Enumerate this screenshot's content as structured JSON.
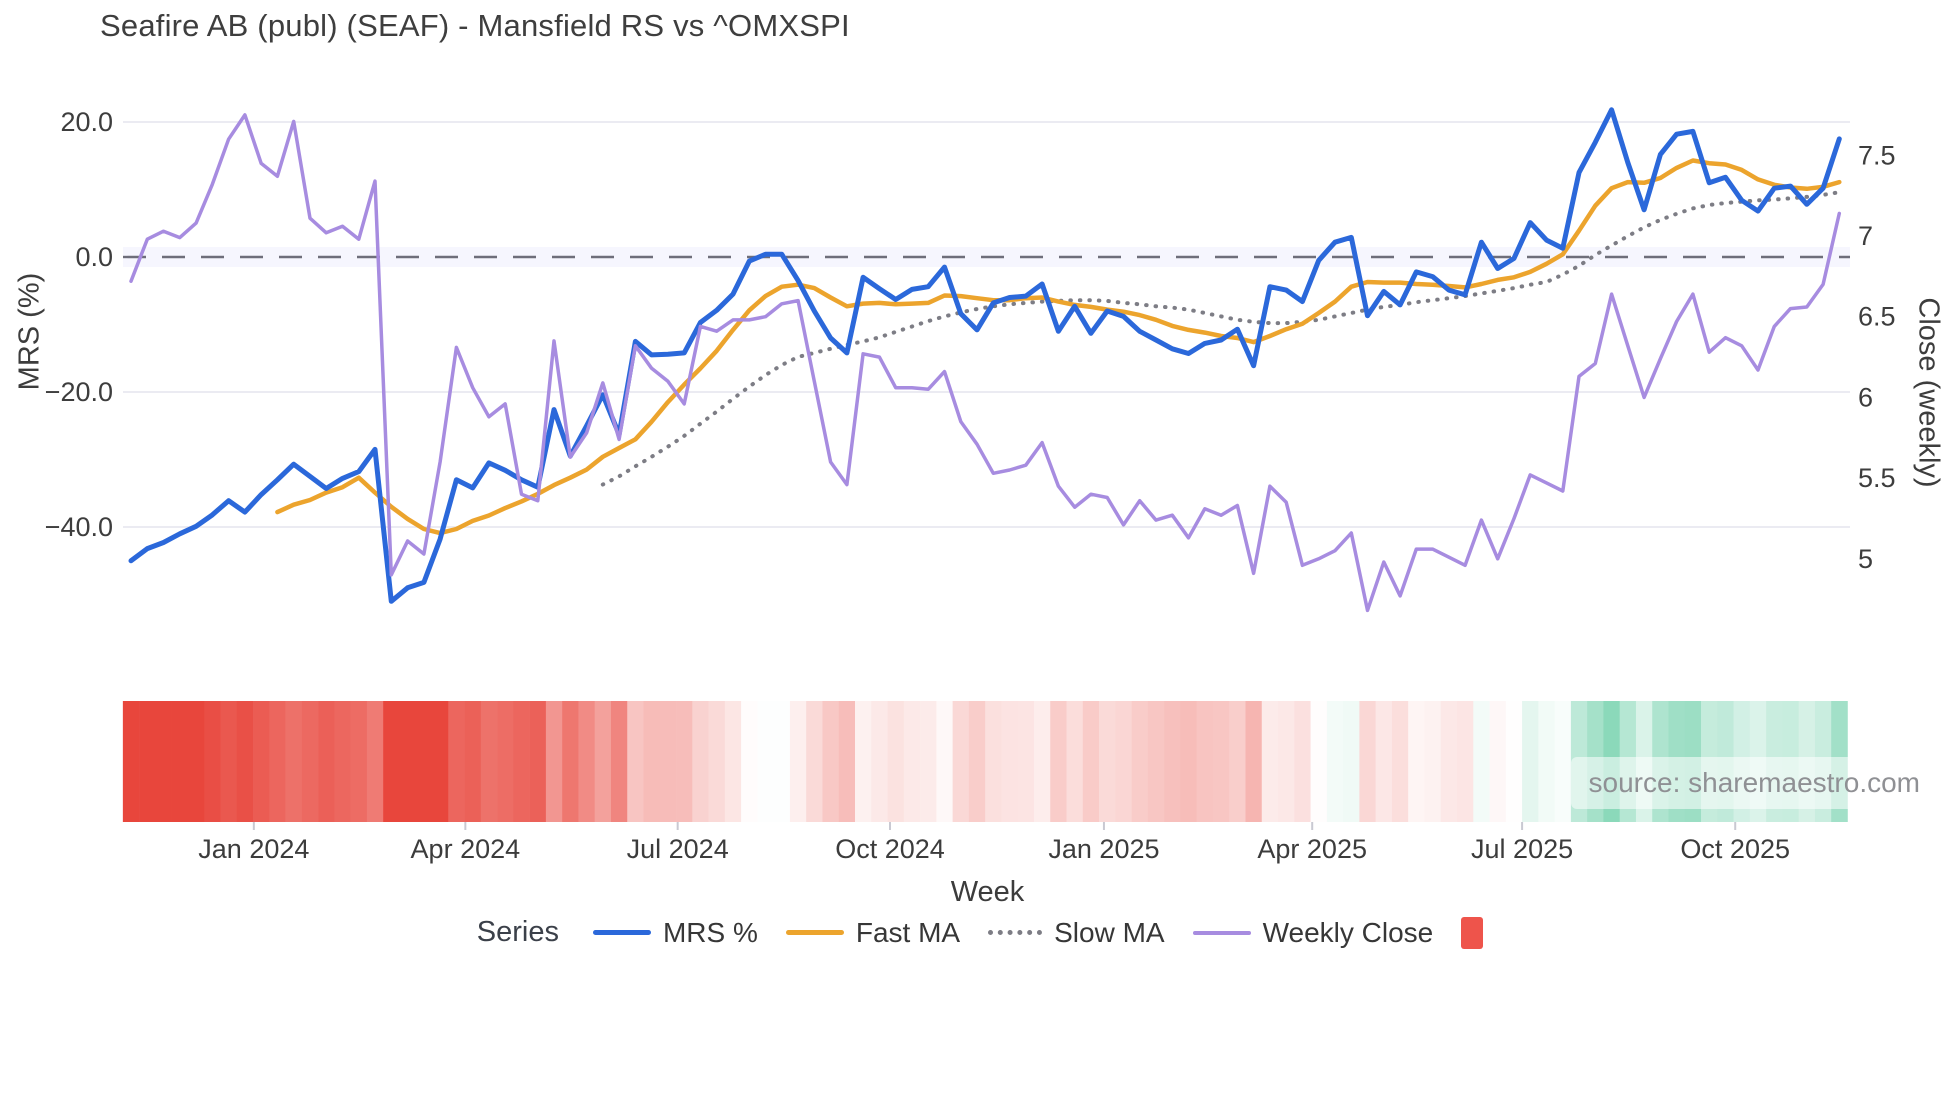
{
  "title": "Seafire AB (publ) (SEAF) - Mansfield RS vs ^OMXSPI",
  "source_text": "source: sharemaestro.com",
  "axes": {
    "left": {
      "title": "MRS (%)",
      "ticks": [
        20.0,
        0.0,
        -20.0,
        -40.0
      ],
      "tick_labels": [
        "20.0",
        "0.0",
        "−20.0",
        "−40.0"
      ]
    },
    "right": {
      "title": "Close (weekly)",
      "ticks": [
        7.5,
        7.0,
        6.5,
        6.0,
        5.5,
        5.0
      ],
      "tick_labels": [
        "7.5",
        "7",
        "6.5",
        "6",
        "5.5",
        "5"
      ]
    },
    "x": {
      "title": "Week",
      "tick_labels": [
        "Jan 2024",
        "Apr 2024",
        "Jul 2024",
        "Oct 2024",
        "Jan 2025",
        "Apr 2025",
        "Jul 2025",
        "Oct 2025"
      ],
      "tick_weeks": [
        7.55,
        20.55,
        33.6,
        46.65,
        59.8,
        72.6,
        85.5,
        98.6
      ]
    }
  },
  "legend": {
    "label": "Series",
    "heatmap_swatch_color": "#ee544b",
    "heatmap_swatch_name": "heatmap-swatch"
  },
  "chart_data": {
    "type": "line",
    "title": "Seafire AB (publ) (SEAF) - Mansfield RS vs ^OMXSPI",
    "xlabel": "Week",
    "ylabel_left": "MRS (%)",
    "ylabel_right": "Close (weekly)",
    "x_unit": "week_index",
    "n_points": 106,
    "ylim_left": [
      -64,
      24
    ],
    "ylim_right": [
      4.19,
      7.87
    ],
    "grid": true,
    "zero_line": true,
    "legend_position": "bottom",
    "series": [
      {
        "name": "MRS %",
        "axis": "left",
        "color": "#2b68da",
        "width": 5,
        "style": "solid",
        "values": [
          -45.0,
          -43.2,
          -42.3,
          -41.0,
          -39.9,
          -38.2,
          -36.1,
          -37.8,
          -35.2,
          -33.0,
          -30.7,
          -32.5,
          -34.3,
          -32.8,
          -31.8,
          -28.5,
          -51.0,
          -49.0,
          -48.2,
          -41.8,
          -33.0,
          -34.2,
          -30.5,
          -31.6,
          -33.0,
          -34.1,
          -22.6,
          -29.5,
          -25.0,
          -20.4,
          -26.3,
          -12.5,
          -14.5,
          -14.4,
          -14.2,
          -9.7,
          -7.9,
          -5.5,
          -0.6,
          0.4,
          0.4,
          -3.5,
          -8.0,
          -12.0,
          -14.2,
          -3.0,
          -4.7,
          -6.3,
          -4.8,
          -4.4,
          -1.5,
          -8.4,
          -10.8,
          -6.8,
          -6.0,
          -5.8,
          -4.0,
          -11.0,
          -7.3,
          -11.3,
          -8.0,
          -8.8,
          -11.0,
          -12.3,
          -13.6,
          -14.3,
          -12.8,
          -12.3,
          -10.7,
          -16.1,
          -4.4,
          -4.9,
          -6.6,
          -0.5,
          2.2,
          2.9,
          -8.7,
          -5.1,
          -7.1,
          -2.2,
          -2.9,
          -4.9,
          -5.6,
          2.2,
          -1.7,
          -0.2,
          5.1,
          2.5,
          1.3,
          12.5,
          17.0,
          21.8,
          14.0,
          7.0,
          15.2,
          18.2,
          18.6,
          11.0,
          11.8,
          8.4,
          6.8,
          10.2,
          10.5,
          7.8,
          10.2,
          17.5
        ]
      },
      {
        "name": "Fast MA",
        "axis": "left",
        "color": "#eca42d",
        "width": 4.5,
        "style": "solid",
        "values": [
          null,
          null,
          null,
          null,
          null,
          null,
          null,
          null,
          null,
          -37.8,
          -36.7,
          -36.0,
          -34.9,
          -34.1,
          -32.7,
          -34.9,
          -37.0,
          -38.8,
          -40.3,
          -40.9,
          -40.3,
          -39.1,
          -38.3,
          -37.2,
          -36.2,
          -35.1,
          -33.8,
          -32.7,
          -31.5,
          -29.6,
          -28.3,
          -27.0,
          -24.4,
          -21.5,
          -18.9,
          -16.5,
          -13.9,
          -10.8,
          -7.9,
          -5.8,
          -4.4,
          -4.1,
          -4.6,
          -6.0,
          -7.3,
          -6.9,
          -6.8,
          -7.0,
          -6.9,
          -6.8,
          -5.7,
          -5.8,
          -6.1,
          -6.4,
          -6.4,
          -6.1,
          -6.0,
          -6.6,
          -7.1,
          -7.4,
          -7.8,
          -8.1,
          -8.6,
          -9.3,
          -10.2,
          -10.8,
          -11.2,
          -11.7,
          -12.0,
          -12.6,
          -11.7,
          -10.7,
          -9.9,
          -8.3,
          -6.6,
          -4.4,
          -3.7,
          -3.8,
          -3.8,
          -4.0,
          -4.1,
          -4.3,
          -4.5,
          -4.0,
          -3.4,
          -3.0,
          -2.2,
          -1.0,
          0.4,
          3.9,
          7.6,
          10.2,
          11.1,
          11.0,
          11.7,
          13.2,
          14.3,
          13.9,
          13.7,
          12.9,
          11.5,
          10.7,
          10.3,
          10.1,
          10.4,
          11.1
        ]
      },
      {
        "name": "Slow MA",
        "axis": "left",
        "color": "#7d7d85",
        "width": 4,
        "style": "dotted",
        "values": [
          null,
          null,
          null,
          null,
          null,
          null,
          null,
          null,
          null,
          null,
          null,
          null,
          null,
          null,
          null,
          null,
          null,
          null,
          null,
          null,
          null,
          null,
          null,
          null,
          null,
          null,
          null,
          null,
          null,
          -33.7,
          -32.5,
          -31.0,
          -29.6,
          -28.1,
          -26.5,
          -24.7,
          -22.9,
          -21.0,
          -19.2,
          -17.5,
          -16.0,
          -14.8,
          -14.2,
          -13.6,
          -13.0,
          -12.5,
          -11.9,
          -11.1,
          -10.3,
          -9.5,
          -8.8,
          -8.2,
          -7.7,
          -7.3,
          -7.0,
          -6.8,
          -6.6,
          -6.5,
          -6.4,
          -6.4,
          -6.5,
          -6.8,
          -7.0,
          -7.3,
          -7.5,
          -7.8,
          -8.3,
          -8.8,
          -9.3,
          -9.6,
          -9.8,
          -9.8,
          -9.6,
          -9.3,
          -8.8,
          -8.3,
          -7.8,
          -7.4,
          -7.1,
          -6.7,
          -6.4,
          -6.1,
          -5.8,
          -5.4,
          -5.0,
          -4.6,
          -4.1,
          -3.7,
          -2.6,
          -1.3,
          0.3,
          1.7,
          3.1,
          4.4,
          5.5,
          6.4,
          7.2,
          7.7,
          8.0,
          8.2,
          8.4,
          8.5,
          8.7,
          8.9,
          9.2,
          9.6
        ]
      },
      {
        "name": "Weekly Close",
        "axis": "right",
        "color": "#a78ce0",
        "width": 3.5,
        "style": "solid",
        "values": [
          6.72,
          6.98,
          7.03,
          6.99,
          7.08,
          7.32,
          7.6,
          7.75,
          7.45,
          7.37,
          7.71,
          7.11,
          7.02,
          7.06,
          6.98,
          7.34,
          4.9,
          5.11,
          5.03,
          5.6,
          6.31,
          6.06,
          5.88,
          5.96,
          5.4,
          5.36,
          6.35,
          5.63,
          5.78,
          6.09,
          5.74,
          6.32,
          6.18,
          6.1,
          5.96,
          6.44,
          6.41,
          6.48,
          6.48,
          6.5,
          6.58,
          6.6,
          6.1,
          5.6,
          5.46,
          6.27,
          6.25,
          6.06,
          6.06,
          6.05,
          6.16,
          5.85,
          5.71,
          5.53,
          5.55,
          5.58,
          5.72,
          5.45,
          5.32,
          5.4,
          5.38,
          5.21,
          5.36,
          5.24,
          5.27,
          5.13,
          5.31,
          5.27,
          5.33,
          4.91,
          5.45,
          5.35,
          4.96,
          5.0,
          5.05,
          5.16,
          4.68,
          4.98,
          4.77,
          5.06,
          5.06,
          5.01,
          4.96,
          5.24,
          5.0,
          5.25,
          5.52,
          5.47,
          5.42,
          6.13,
          6.21,
          6.64,
          6.32,
          6.0,
          6.24,
          6.47,
          6.64,
          6.28,
          6.37,
          6.32,
          6.17,
          6.44,
          6.55,
          6.56,
          6.7,
          7.14
        ]
      }
    ],
    "heatmap": {
      "from_series": "MRS %",
      "negative_color": "#e8463c",
      "positive_color": "#2bb981",
      "scale_abs_max": 40
    }
  }
}
